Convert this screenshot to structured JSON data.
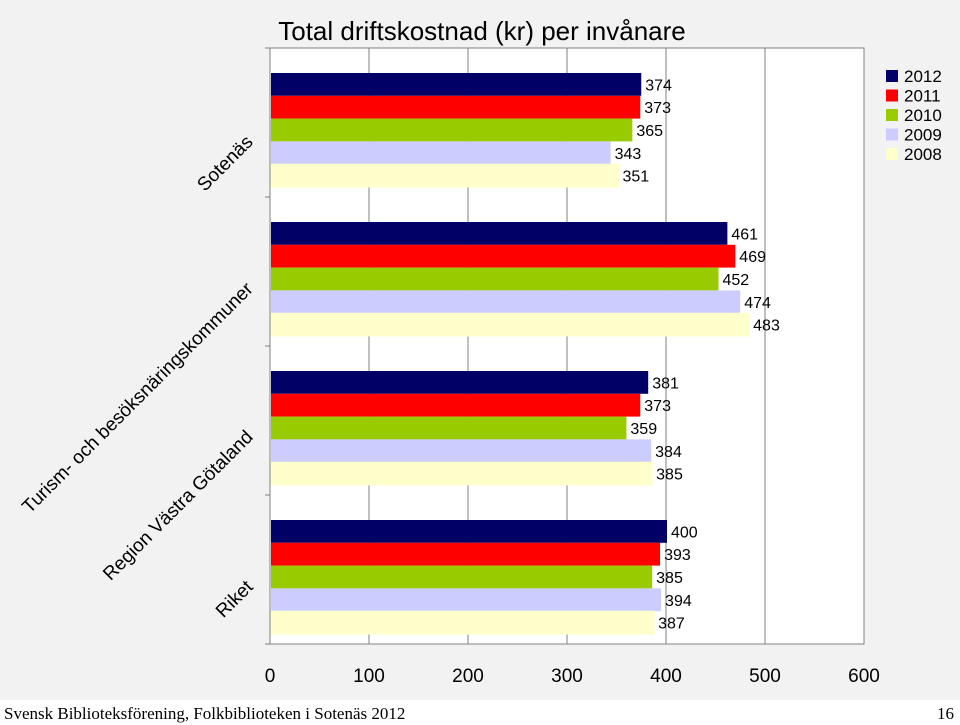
{
  "chart_data": {
    "type": "bar",
    "orientation": "horizontal",
    "title": "Total driftskostnad (kr) per invånare",
    "categories": [
      "Sotenäs",
      "Turism- och besöksnäringskommuner",
      "Region Västra Götaland",
      "Riket"
    ],
    "series": [
      {
        "name": "2012",
        "color": "#000066",
        "values": [
          374,
          461,
          381,
          400
        ]
      },
      {
        "name": "2011",
        "color": "#ff0000",
        "values": [
          373,
          469,
          373,
          393
        ]
      },
      {
        "name": "2010",
        "color": "#99cc00",
        "values": [
          365,
          452,
          359,
          385
        ]
      },
      {
        "name": "2009",
        "color": "#ccccff",
        "values": [
          343,
          474,
          384,
          394
        ]
      },
      {
        "name": "2008",
        "color": "#ffffcc",
        "values": [
          351,
          483,
          385,
          387
        ]
      }
    ],
    "xlim": [
      0,
      600
    ],
    "xticks": [
      "0",
      "100",
      "200",
      "300",
      "400",
      "500",
      "600"
    ],
    "grid": true,
    "legend": "top-right",
    "data_labels": true
  },
  "footer": {
    "source": "Svensk Biblioteksförening, Folkbiblioteken i Sotenäs 2012",
    "page_number": "16"
  }
}
